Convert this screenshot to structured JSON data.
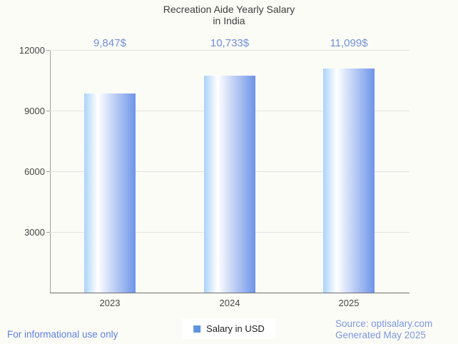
{
  "title": {
    "line1": "Recreation Aide Yearly Salary",
    "line2": "in India"
  },
  "chart_data": {
    "type": "bar",
    "title": "Recreation Aide Yearly Salary in India",
    "categories": [
      "2023",
      "2024",
      "2025"
    ],
    "series": [
      {
        "name": "Salary in USD",
        "values": [
          9847,
          10733,
          11099
        ]
      }
    ],
    "value_labels": [
      "9,847$",
      "10,733$",
      "11,099$"
    ],
    "xlabel": "",
    "ylabel": "",
    "ylim": [
      0,
      12000
    ],
    "yticks": [
      3000,
      6000,
      9000,
      12000
    ],
    "grid": true,
    "legend_position": "bottom"
  },
  "legend": {
    "label": "Salary in USD"
  },
  "footer": {
    "left": "For informational use only",
    "source_line1": "Source: optisalary.com",
    "source_line2": "Generated May 2025"
  },
  "colors": {
    "background": "#fcfcf7",
    "title_text": "#3d3d3d",
    "axis_text": "#444444",
    "value_label": "#7090d8",
    "bar_left": "#aad3f9",
    "bar_mid": "#ffffff",
    "bar_right": "#6d94e9",
    "gridline": "#e2e2e2",
    "axis_line": "#9e9e9e",
    "baseline": "#6e6e6e",
    "legend_marker": "#5d93e0",
    "footer_left_text": "#5c81dc",
    "source_text": "#7b97dd"
  }
}
